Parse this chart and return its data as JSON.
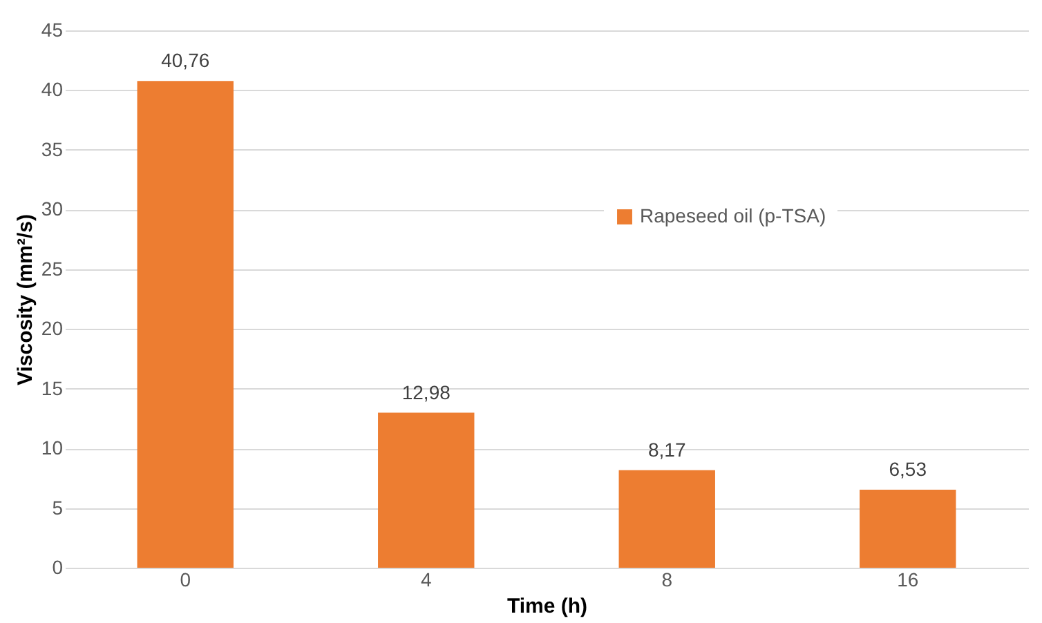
{
  "chart_data": {
    "type": "bar",
    "xlabel": "Time (h)",
    "ylabel": "Viscosity (mm²/s)",
    "categories": [
      "0",
      "4",
      "8",
      "16"
    ],
    "series": [
      {
        "name": "Rapeseed oil (p-TSA)",
        "color": "#ed7d31",
        "values": [
          40.76,
          12.98,
          8.17,
          6.53
        ],
        "value_labels": [
          "40,76",
          "12,98",
          "8,17",
          "6,53"
        ]
      }
    ],
    "ylim": [
      0,
      45
    ],
    "yticks": [
      0,
      5,
      10,
      15,
      20,
      25,
      30,
      35,
      40,
      45
    ],
    "grid": "y",
    "legend": "right"
  }
}
